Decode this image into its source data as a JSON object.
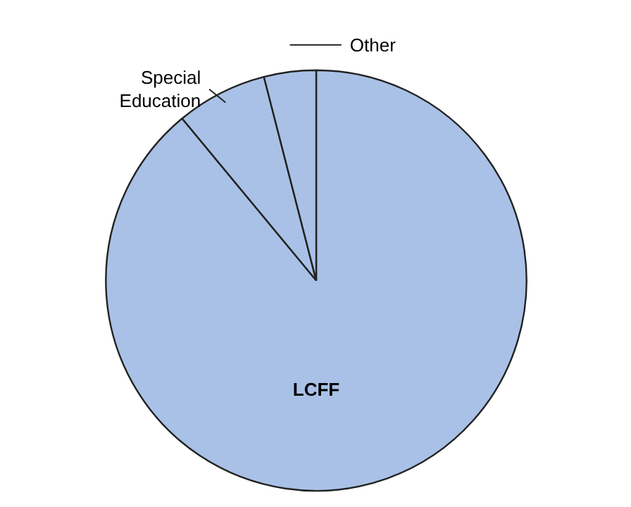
{
  "chart_data": {
    "type": "pie",
    "categories": [
      "LCFF",
      "Special Education",
      "Other"
    ],
    "values": [
      89,
      7,
      4
    ],
    "colors": [
      "#a9c1e6",
      "#a9c1e6",
      "#a9c1e6"
    ]
  }
}
